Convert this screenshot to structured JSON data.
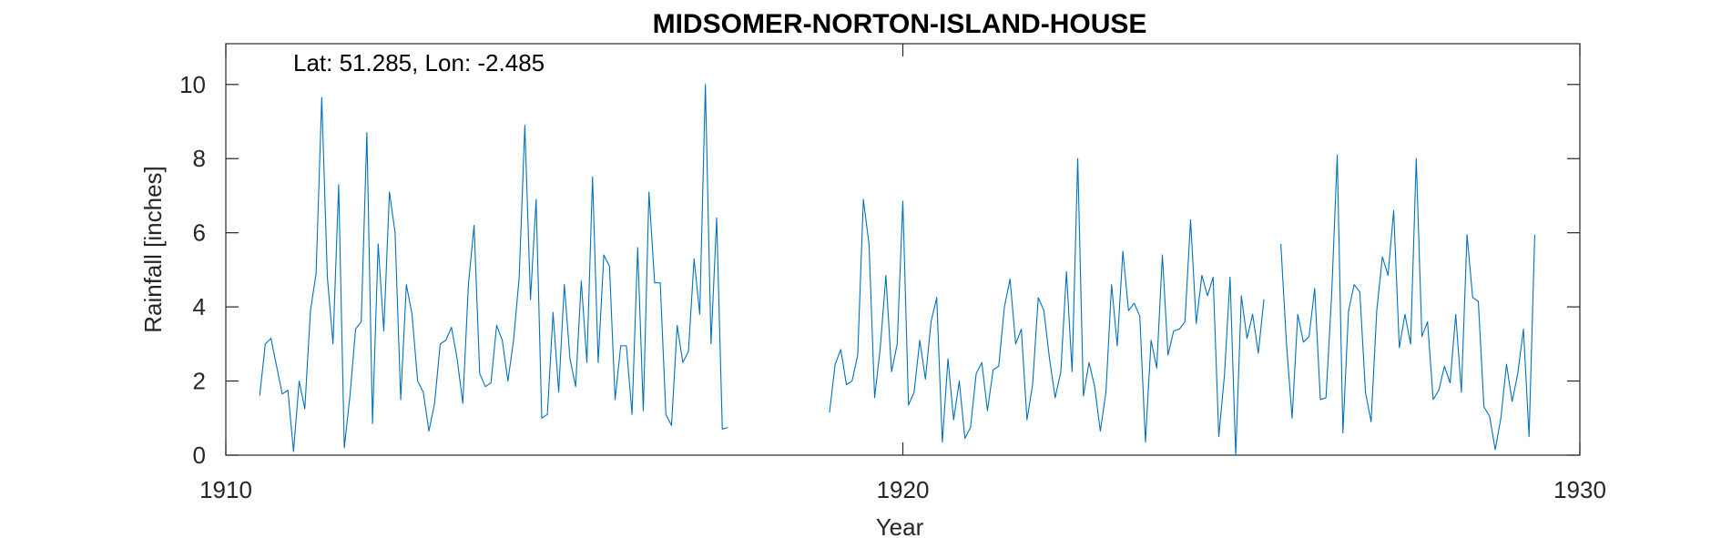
{
  "chart_data": {
    "type": "line",
    "title": "MIDSOMER-NORTON-ISLAND-HOUSE",
    "xlabel": "Year",
    "ylabel": "Rainfall [inches]",
    "annotation": "Lat: 51.285, Lon: -2.485",
    "xlim": [
      1910,
      1930
    ],
    "ylim": [
      0,
      11.1
    ],
    "xticks": [
      1910,
      1920,
      1930
    ],
    "xtick_labels": [
      "1910",
      "1920",
      "1930"
    ],
    "yticks": [
      0,
      2,
      4,
      6,
      8,
      10
    ],
    "ytick_labels": [
      "0",
      "2",
      "4",
      "6",
      "8",
      "10"
    ],
    "grid": false,
    "series": [
      {
        "color": "#0072BD",
        "segments": [
          {
            "start_year": 1910.5,
            "step": 0.0833333,
            "values": [
              1.6,
              3.0,
              3.15,
              2.4,
              1.65,
              1.75,
              0.1,
              2.0,
              1.25,
              3.9,
              4.9,
              9.65,
              4.8,
              3.0,
              7.3,
              0.2,
              1.6,
              3.4,
              3.6,
              8.7,
              0.85,
              5.7,
              3.35,
              7.1,
              6.0,
              1.5,
              4.6,
              3.8,
              2.0,
              1.7,
              0.65,
              1.4,
              3.0,
              3.1,
              3.45,
              2.6,
              1.4,
              4.6,
              6.2,
              2.2,
              1.85,
              1.95,
              3.5,
              3.1,
              2.0,
              3.1,
              4.8,
              8.9,
              4.2,
              6.9,
              1.0,
              1.1,
              3.85,
              1.7,
              4.6,
              2.6,
              1.85,
              4.7,
              2.5,
              7.5,
              2.5,
              5.4,
              5.1,
              1.5,
              2.95,
              2.95,
              1.1,
              5.6,
              1.2,
              7.1,
              4.65,
              4.65,
              1.1,
              0.8,
              3.5,
              2.5,
              2.8,
              5.3,
              3.8,
              10.0,
              3.0,
              6.4,
              0.7,
              0.75
            ]
          },
          {
            "start_year": 1918.9167,
            "step": 0.0833333,
            "values": [
              1.15,
              2.45,
              2.85,
              1.9,
              2.0,
              2.7,
              6.9,
              5.7,
              1.55,
              2.9,
              4.85,
              2.25,
              3.0,
              6.85,
              1.35,
              1.7,
              3.1,
              2.05,
              3.6,
              4.25,
              0.35,
              2.6,
              0.95,
              2.0,
              0.45,
              0.75,
              2.2,
              2.5,
              1.2,
              2.3,
              2.4,
              4.0,
              4.75,
              3.0,
              3.4,
              0.95,
              1.9,
              4.25,
              3.9,
              2.6,
              1.55,
              2.25,
              4.95,
              2.25,
              8.0,
              1.6,
              2.5,
              1.85,
              0.65,
              1.7,
              4.6,
              2.95,
              5.5,
              3.9,
              4.1,
              3.75,
              0.35,
              3.1,
              2.35,
              5.4,
              2.7,
              3.35,
              3.4,
              3.6,
              6.35,
              3.55,
              4.85,
              4.3,
              4.8,
              0.5,
              2.15,
              4.8,
              0.0,
              4.3,
              3.15,
              3.8,
              2.75,
              4.2
            ]
          },
          {
            "start_year": 1925.5833,
            "step": 0.0833333,
            "values": [
              5.7,
              3.0,
              1.0,
              3.8,
              3.05,
              3.2,
              4.5,
              1.5,
              1.55,
              4.3,
              8.1,
              0.6,
              3.9,
              4.6,
              4.4,
              1.7,
              0.9,
              3.9,
              5.35,
              4.85,
              6.6,
              2.9,
              3.8,
              3.0,
              8.0,
              3.2,
              3.6,
              1.5,
              1.75,
              2.4,
              1.95,
              3.8,
              1.7,
              5.95,
              4.25,
              4.15,
              1.3,
              1.05,
              0.15,
              1.0,
              2.45,
              1.45,
              2.2,
              3.4,
              0.5,
              5.95
            ]
          }
        ]
      }
    ]
  }
}
